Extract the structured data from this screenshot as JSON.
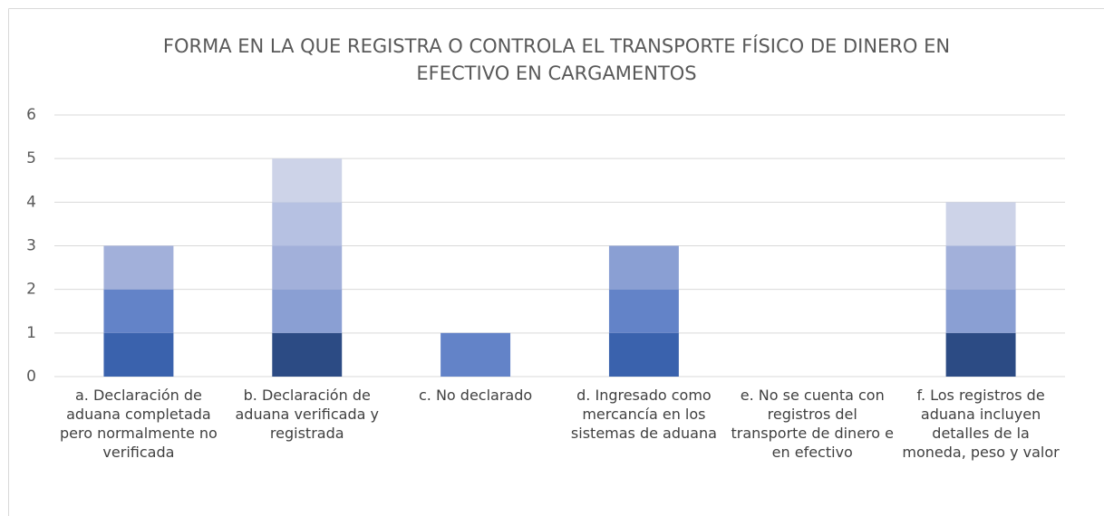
{
  "chart_data": {
    "type": "stacked_bar",
    "title": "FORMA EN LA QUE REGISTRA O CONTROLA EL TRANSPORTE FÍSICO DE DINERO EN EFECTIVO EN CARGAMENTOS",
    "categories": [
      "a. Declaración de aduana completada pero normalmente no verificada",
      "b. Declaración de aduana verificada y registrada",
      "c. No declarado",
      "d. Ingresado como mercancía en los sistemas de aduana",
      "e. No se cuenta con registros del transporte de dinero e en efectivo",
      "f. Los registros de aduana incluyen detalles de la moneda, peso y valor"
    ],
    "series": [
      {
        "color": "#2c4b84",
        "values": [
          0,
          1,
          0,
          0,
          0,
          1
        ]
      },
      {
        "color": "#3a62ad",
        "values": [
          1,
          0,
          0,
          1,
          0,
          0
        ]
      },
      {
        "color": "#6383c8",
        "values": [
          1,
          0,
          1,
          1,
          0,
          0
        ]
      },
      {
        "color": "#8a9fd3",
        "values": [
          0,
          1,
          0,
          1,
          0,
          1
        ]
      },
      {
        "color": "#a2b0da",
        "values": [
          1,
          1,
          0,
          0,
          0,
          1
        ]
      },
      {
        "color": "#b6c1e2",
        "values": [
          0,
          1,
          0,
          0,
          0,
          0
        ]
      },
      {
        "color": "#cdd3e8",
        "values": [
          0,
          1,
          0,
          0,
          0,
          1
        ]
      }
    ],
    "ylim": [
      0,
      6
    ],
    "yticks": [
      0,
      1,
      2,
      3,
      4,
      5,
      6
    ],
    "grid": true
  }
}
